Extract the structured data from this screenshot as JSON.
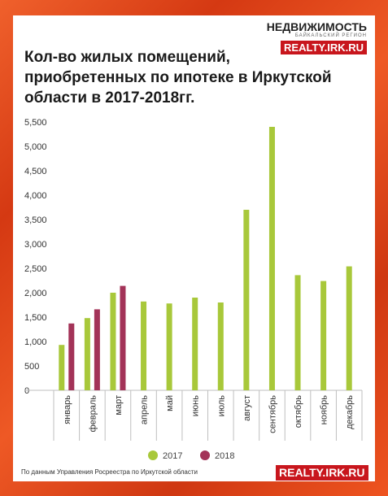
{
  "branding": {
    "logo_title": "НЕДВИЖИМОСТЬ",
    "logo_subtitle": "БАЙКАЛЬСКИЙ РЕГИОН",
    "logo_badge": "REALTY.IRK.RU",
    "bottom_badge": "REALTY.IRK.RU"
  },
  "source_note": "По данным Управления Росреестра по Иркутской области",
  "chart_data": {
    "type": "bar",
    "title": "Кол-во жилых помещений, приобретенных по ипотеке в Иркутской области в 2017-2018гг.",
    "xlabel": "",
    "ylabel": "",
    "ylim": [
      0,
      5500
    ],
    "yticks": [
      0,
      500,
      1000,
      1500,
      2000,
      2500,
      3000,
      3500,
      4000,
      4500,
      5000,
      5500
    ],
    "ytick_labels": [
      "0",
      "500",
      "1,000",
      "1,500",
      "2,000",
      "2,500",
      "3,000",
      "3,500",
      "4,000",
      "4,500",
      "5,000",
      "5,500"
    ],
    "grid": false,
    "legend_position": "bottom",
    "categories": [
      "январь",
      "февраль",
      "март",
      "апрель",
      "май",
      "июнь",
      "июль",
      "август",
      "сентябрь",
      "октябрь",
      "ноябрь",
      "декабрь"
    ],
    "series": [
      {
        "name": "2017",
        "color": "#a8c83a",
        "values": [
          930,
          1480,
          2000,
          1820,
          1780,
          1900,
          1800,
          3700,
          5400,
          2360,
          2240,
          2540
        ]
      },
      {
        "name": "2018",
        "color": "#a33358",
        "values": [
          1370,
          1660,
          2140,
          null,
          null,
          null,
          null,
          null,
          null,
          null,
          null,
          null
        ]
      }
    ]
  }
}
